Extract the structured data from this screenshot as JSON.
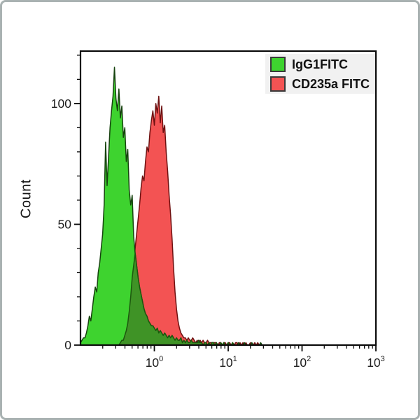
{
  "figure": {
    "background": "#ffffff",
    "border_color": "#a9b2b2"
  },
  "chart_data": {
    "type": "area",
    "subtype": "flow-cytometry-histogram",
    "title": "",
    "xlabel": "",
    "ylabel": "Count",
    "x_scale": "log10",
    "x_range_exponents": [
      -1,
      3
    ],
    "y_range": [
      0,
      121.7
    ],
    "y_major_ticks": [
      0,
      50,
      100
    ],
    "y_minor_step": 10,
    "y_minor_max": 120,
    "x_tick_base": "10",
    "x_major_exponents": [
      0,
      1,
      2,
      3
    ],
    "grid": "off",
    "legend_position": "top-right",
    "log_start": -1.0,
    "log_step": 0.02,
    "overlap_fill": "#3f9326",
    "overlap_stroke": "#1c570e",
    "axis_color": "#0a0a0a",
    "tick_label_color": "#1d1d1d",
    "series": [
      {
        "name": "IgG1FITC",
        "fill": "#3ed32f",
        "stroke": "#16430e",
        "peak_log_x": -0.54,
        "peak_count": 115,
        "counts": [
          1,
          2,
          3,
          3,
          5,
          8,
          12,
          10,
          15,
          20,
          24,
          22,
          30,
          34,
          40,
          46,
          58,
          84,
          66,
          78,
          90,
          97,
          103,
          115,
          102,
          97,
          106,
          94,
          99,
          86,
          90,
          76,
          81,
          64,
          58,
          62,
          45,
          38,
          33,
          28,
          24,
          21,
          18,
          15,
          13,
          12,
          10,
          9,
          8,
          8,
          7,
          6,
          7,
          5,
          6,
          5,
          4,
          5,
          4,
          3,
          4,
          3,
          4,
          3,
          2,
          3,
          2,
          2,
          3,
          1,
          2,
          1,
          2,
          1,
          1,
          2,
          1,
          1,
          1,
          1,
          2,
          1,
          1,
          0,
          1,
          1,
          0,
          1,
          0,
          1,
          1,
          0,
          1,
          0,
          0,
          1,
          0,
          1,
          0,
          0,
          1,
          0,
          0,
          1,
          0,
          0,
          0,
          1,
          0,
          0,
          0,
          1,
          0,
          0,
          0,
          0,
          1,
          0,
          0,
          0,
          0,
          0,
          1,
          0,
          0,
          0,
          0,
          0,
          0,
          0,
          0
        ]
      },
      {
        "name": "CD235a FITC",
        "fill": "#f35353",
        "stroke": "#6e1111",
        "peak_log_x": 0.06,
        "peak_count": 103,
        "counts": [
          0,
          0,
          0,
          0,
          0,
          0,
          0,
          0,
          0,
          0,
          0,
          0,
          0,
          0,
          0,
          0,
          0,
          0,
          0,
          0,
          0,
          0,
          0,
          0,
          0,
          0,
          0,
          1,
          2,
          2,
          4,
          6,
          9,
          14,
          20,
          28,
          33,
          40,
          46,
          52,
          58,
          65,
          70,
          68,
          76,
          82,
          80,
          88,
          93,
          97,
          91,
          100,
          96,
          103,
          92,
          99,
          88,
          91,
          80,
          72,
          62,
          54,
          44,
          32,
          22,
          15,
          10,
          7,
          5,
          4,
          3,
          3,
          2,
          3,
          2,
          2,
          3,
          2,
          1,
          2,
          1,
          2,
          1,
          2,
          1,
          1,
          2,
          1,
          1,
          1,
          1,
          1,
          1,
          0,
          1,
          1,
          0,
          1,
          1,
          0,
          1,
          1,
          0,
          1,
          0,
          1,
          1,
          0,
          1,
          0,
          1,
          0,
          1,
          0,
          0,
          1,
          0,
          0,
          1,
          0,
          1,
          0,
          0,
          0,
          0,
          0,
          0,
          0,
          0,
          0,
          0
        ]
      }
    ]
  },
  "legend": {
    "items": [
      {
        "label": "IgG1FITC"
      },
      {
        "label": "CD235a FITC"
      }
    ]
  }
}
